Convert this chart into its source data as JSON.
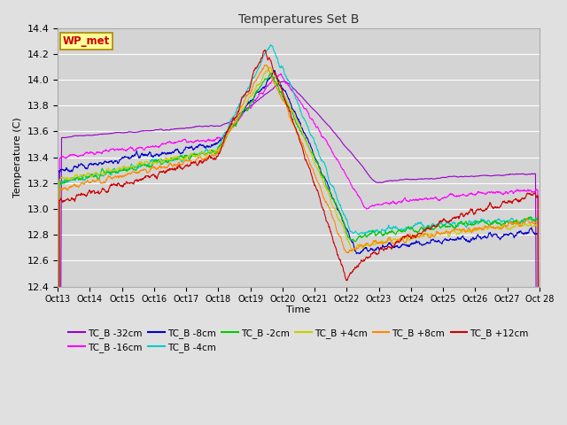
{
  "title": "Temperatures Set B",
  "xlabel": "Time",
  "ylabel": "Temperature (C)",
  "ylim": [
    12.4,
    14.4
  ],
  "background_color": "#e0e0e0",
  "plot_bg_color": "#d4d4d4",
  "grid_color": "#ffffff",
  "series": [
    {
      "label": "TC_B -32cm",
      "color": "#9900cc"
    },
    {
      "label": "TC_B -16cm",
      "color": "#ff00ff"
    },
    {
      "label": "TC_B -8cm",
      "color": "#0000cc"
    },
    {
      "label": "TC_B -4cm",
      "color": "#00cccc"
    },
    {
      "label": "TC_B -2cm",
      "color": "#00cc00"
    },
    {
      "label": "TC_B +4cm",
      "color": "#cccc00"
    },
    {
      "label": "TC_B +8cm",
      "color": "#ff8800"
    },
    {
      "label": "TC_B +12cm",
      "color": "#cc0000"
    }
  ],
  "xtick_labels": [
    "Oct 13",
    "Oct 14",
    "Oct 15",
    "Oct 16",
    "Oct 17",
    "Oct 18",
    "Oct 19",
    "Oct 20",
    "Oct 21",
    "Oct 22",
    "Oct 23",
    "Oct 24",
    "Oct 25",
    "Oct 26",
    "Oct 27",
    "Oct 28"
  ],
  "annotation_label": "WP_met",
  "annotation_color": "#cc0000",
  "annotation_bg": "#ffff99",
  "annotation_edge": "#aa8800"
}
